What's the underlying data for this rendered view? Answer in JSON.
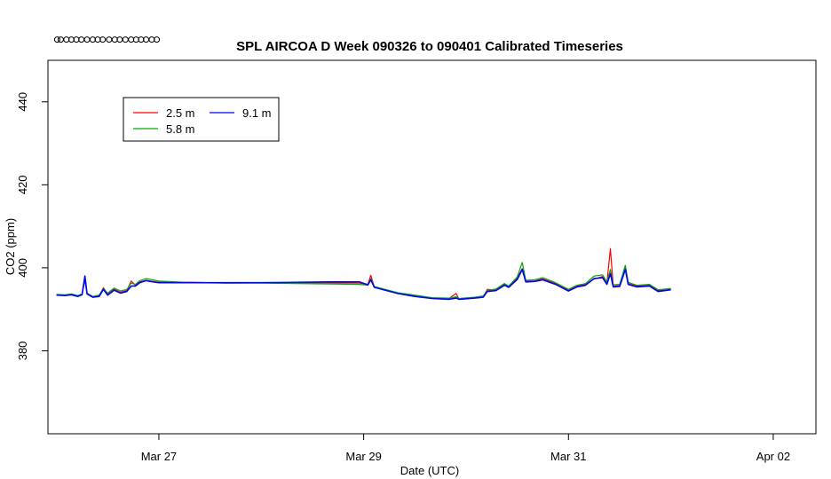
{
  "chart_data": {
    "type": "line",
    "title": "SPL AIRCOA D  Week 090326 to 090401  Calibrated Timeseries",
    "xlabel": "Date (UTC)",
    "ylabel": "CO2 (ppm)",
    "x_ticks": [
      {
        "x": "2009-03-27",
        "label": "Mar 27"
      },
      {
        "x": "2009-03-29",
        "label": "Mar 29"
      },
      {
        "x": "2009-03-31",
        "label": "Mar 31"
      },
      {
        "x": "2009-04-02",
        "label": "Apr 02"
      }
    ],
    "y_ticks": [
      380,
      400,
      420,
      440
    ],
    "ylim": [
      360,
      450
    ],
    "xlim": [
      "2009-03-25T22:00",
      "2009-04-02T10:00"
    ],
    "grid": false,
    "legend_position": "top-left",
    "calibration_markers": {
      "y": 455,
      "x": [
        "2009-03-26T00:10",
        "2009-03-26T01:00",
        "2009-03-26T02:20",
        "2009-03-26T03:30",
        "2009-03-26T04:40",
        "2009-03-26T05:50",
        "2009-03-26T07:10",
        "2009-03-26T08:30",
        "2009-03-26T09:40",
        "2009-03-26T10:50",
        "2009-03-26T12:20",
        "2009-03-26T13:40",
        "2009-03-26T14:50",
        "2009-03-26T16:10",
        "2009-03-26T17:30",
        "2009-03-26T18:40",
        "2009-03-26T19:50",
        "2009-03-26T21:00",
        "2009-03-26T22:20",
        "2009-03-26T23:30"
      ]
    },
    "series": [
      {
        "name": "2.5 m",
        "color": "#ff0000",
        "points": [
          [
            "2009-03-26T00:00",
            393.5
          ],
          [
            "2009-03-26T02:00",
            393.4
          ],
          [
            "2009-03-26T03:30",
            393.6
          ],
          [
            "2009-03-26T05:00",
            393.2
          ],
          [
            "2009-03-26T06:00",
            393.6
          ],
          [
            "2009-03-26T06:40",
            397.8
          ],
          [
            "2009-03-26T07:10",
            393.8
          ],
          [
            "2009-03-26T08:30",
            393.0
          ],
          [
            "2009-03-26T10:00",
            393.2
          ],
          [
            "2009-03-26T11:00",
            395.2
          ],
          [
            "2009-03-26T12:00",
            393.6
          ],
          [
            "2009-03-26T13:30",
            394.8
          ],
          [
            "2009-03-26T15:00",
            394.1
          ],
          [
            "2009-03-26T16:30",
            394.5
          ],
          [
            "2009-03-26T17:30",
            396.8
          ],
          [
            "2009-03-26T18:30",
            395.8
          ],
          [
            "2009-03-26T19:30",
            396.6
          ],
          [
            "2009-03-26T21:00",
            397.0
          ],
          [
            "2009-03-26T22:00",
            396.8
          ],
          [
            "2009-03-27T00:00",
            396.5
          ],
          [
            "2009-03-27T08:00",
            396.5
          ],
          [
            "2009-03-27T16:00",
            396.3
          ],
          [
            "2009-03-28T00:00",
            396.4
          ],
          [
            "2009-03-28T08:00",
            396.4
          ],
          [
            "2009-03-28T16:00",
            396.4
          ],
          [
            "2009-03-28T23:00",
            396.3
          ],
          [
            "2009-03-29T01:00",
            396.0
          ],
          [
            "2009-03-29T01:40",
            398.2
          ],
          [
            "2009-03-29T02:30",
            395.4
          ],
          [
            "2009-03-29T05:00",
            394.7
          ],
          [
            "2009-03-29T08:00",
            393.9
          ],
          [
            "2009-03-29T12:00",
            393.2
          ],
          [
            "2009-03-29T16:00",
            392.7
          ],
          [
            "2009-03-29T20:00",
            392.6
          ],
          [
            "2009-03-29T21:40",
            393.8
          ],
          [
            "2009-03-29T22:20",
            392.5
          ],
          [
            "2009-03-30T02:00",
            392.8
          ],
          [
            "2009-03-30T04:00",
            393.0
          ],
          [
            "2009-03-30T05:00",
            394.8
          ],
          [
            "2009-03-30T07:00",
            394.6
          ],
          [
            "2009-03-30T09:00",
            396.0
          ],
          [
            "2009-03-30T10:00",
            395.4
          ],
          [
            "2009-03-30T12:00",
            397.5
          ],
          [
            "2009-03-30T13:10",
            399.8
          ],
          [
            "2009-03-30T14:00",
            396.8
          ],
          [
            "2009-03-30T16:00",
            396.8
          ],
          [
            "2009-03-30T18:00",
            397.3
          ],
          [
            "2009-03-30T21:00",
            396.2
          ],
          [
            "2009-03-31T00:00",
            394.6
          ],
          [
            "2009-03-31T02:00",
            395.6
          ],
          [
            "2009-03-31T04:00",
            396.0
          ],
          [
            "2009-03-31T06:00",
            397.3
          ],
          [
            "2009-03-31T08:00",
            397.9
          ],
          [
            "2009-03-31T09:00",
            396.3
          ],
          [
            "2009-03-31T09:50",
            404.6
          ],
          [
            "2009-03-31T10:30",
            395.6
          ],
          [
            "2009-03-31T12:00",
            395.7
          ],
          [
            "2009-03-31T13:20",
            400.4
          ],
          [
            "2009-03-31T14:00",
            396.2
          ],
          [
            "2009-03-31T16:00",
            395.6
          ],
          [
            "2009-03-31T19:00",
            395.8
          ],
          [
            "2009-03-31T21:00",
            394.5
          ],
          [
            "2009-04-01T00:00",
            394.8
          ]
        ]
      },
      {
        "name": "5.8 m",
        "color": "#00aa00",
        "points": [
          [
            "2009-03-26T00:00",
            393.6
          ],
          [
            "2009-03-26T02:00",
            393.5
          ],
          [
            "2009-03-26T03:30",
            393.7
          ],
          [
            "2009-03-26T05:00",
            393.3
          ],
          [
            "2009-03-26T06:00",
            393.7
          ],
          [
            "2009-03-26T06:40",
            396.9
          ],
          [
            "2009-03-26T07:10",
            393.9
          ],
          [
            "2009-03-26T08:30",
            393.1
          ],
          [
            "2009-03-26T10:00",
            393.4
          ],
          [
            "2009-03-26T11:00",
            395.0
          ],
          [
            "2009-03-26T12:00",
            393.9
          ],
          [
            "2009-03-26T13:30",
            395.1
          ],
          [
            "2009-03-26T15:00",
            394.4
          ],
          [
            "2009-03-26T16:30",
            394.8
          ],
          [
            "2009-03-26T17:30",
            396.3
          ],
          [
            "2009-03-26T18:30",
            396.0
          ],
          [
            "2009-03-26T19:30",
            396.9
          ],
          [
            "2009-03-26T21:00",
            397.4
          ],
          [
            "2009-03-26T22:00",
            397.2
          ],
          [
            "2009-03-27T00:00",
            396.8
          ],
          [
            "2009-03-27T08:00",
            396.4
          ],
          [
            "2009-03-27T16:00",
            396.3
          ],
          [
            "2009-03-28T00:00",
            396.3
          ],
          [
            "2009-03-28T08:00",
            396.2
          ],
          [
            "2009-03-28T16:00",
            396.1
          ],
          [
            "2009-03-28T23:00",
            396.0
          ],
          [
            "2009-03-29T01:00",
            395.8
          ],
          [
            "2009-03-29T01:40",
            397.4
          ],
          [
            "2009-03-29T02:30",
            395.5
          ],
          [
            "2009-03-29T05:00",
            394.8
          ],
          [
            "2009-03-29T08:00",
            394.0
          ],
          [
            "2009-03-29T12:00",
            393.4
          ],
          [
            "2009-03-29T16:00",
            392.8
          ],
          [
            "2009-03-29T20:00",
            392.7
          ],
          [
            "2009-03-29T21:40",
            393.0
          ],
          [
            "2009-03-29T22:20",
            392.6
          ],
          [
            "2009-03-30T02:00",
            392.9
          ],
          [
            "2009-03-30T04:00",
            393.2
          ],
          [
            "2009-03-30T05:00",
            394.5
          ],
          [
            "2009-03-30T07:00",
            394.9
          ],
          [
            "2009-03-30T09:00",
            396.2
          ],
          [
            "2009-03-30T10:00",
            395.6
          ],
          [
            "2009-03-30T12:00",
            397.8
          ],
          [
            "2009-03-30T13:10",
            401.3
          ],
          [
            "2009-03-30T14:00",
            397.0
          ],
          [
            "2009-03-30T16:00",
            397.1
          ],
          [
            "2009-03-30T18:00",
            397.6
          ],
          [
            "2009-03-30T21:00",
            396.4
          ],
          [
            "2009-03-31T00:00",
            394.8
          ],
          [
            "2009-03-31T02:00",
            395.8
          ],
          [
            "2009-03-31T04:00",
            396.2
          ],
          [
            "2009-03-31T06:00",
            398.0
          ],
          [
            "2009-03-31T08:00",
            398.3
          ],
          [
            "2009-03-31T09:00",
            396.6
          ],
          [
            "2009-03-31T09:50",
            399.6
          ],
          [
            "2009-03-31T10:30",
            395.9
          ],
          [
            "2009-03-31T12:00",
            396.0
          ],
          [
            "2009-03-31T13:20",
            400.6
          ],
          [
            "2009-03-31T14:00",
            396.5
          ],
          [
            "2009-03-31T16:00",
            395.8
          ],
          [
            "2009-03-31T19:00",
            396.0
          ],
          [
            "2009-03-31T21:00",
            394.7
          ],
          [
            "2009-04-01T00:00",
            395.0
          ]
        ]
      },
      {
        "name": "9.1 m",
        "color": "#0000ff",
        "points": [
          [
            "2009-03-26T00:00",
            393.4
          ],
          [
            "2009-03-26T02:00",
            393.3
          ],
          [
            "2009-03-26T03:30",
            393.5
          ],
          [
            "2009-03-26T05:00",
            393.1
          ],
          [
            "2009-03-26T06:00",
            393.5
          ],
          [
            "2009-03-26T06:40",
            398.0
          ],
          [
            "2009-03-26T07:10",
            393.7
          ],
          [
            "2009-03-26T08:30",
            392.9
          ],
          [
            "2009-03-26T10:00",
            393.1
          ],
          [
            "2009-03-26T11:00",
            394.8
          ],
          [
            "2009-03-26T12:00",
            393.4
          ],
          [
            "2009-03-26T13:30",
            394.6
          ],
          [
            "2009-03-26T15:00",
            393.9
          ],
          [
            "2009-03-26T16:30",
            394.3
          ],
          [
            "2009-03-26T17:30",
            395.6
          ],
          [
            "2009-03-26T18:30",
            395.6
          ],
          [
            "2009-03-26T19:30",
            396.4
          ],
          [
            "2009-03-26T21:00",
            396.9
          ],
          [
            "2009-03-26T22:00",
            396.7
          ],
          [
            "2009-03-27T00:00",
            396.4
          ],
          [
            "2009-03-27T08:00",
            396.4
          ],
          [
            "2009-03-27T16:00",
            396.4
          ],
          [
            "2009-03-28T00:00",
            396.4
          ],
          [
            "2009-03-28T08:00",
            396.5
          ],
          [
            "2009-03-28T16:00",
            396.6
          ],
          [
            "2009-03-28T23:00",
            396.6
          ],
          [
            "2009-03-29T01:00",
            395.9
          ],
          [
            "2009-03-29T01:40",
            397.1
          ],
          [
            "2009-03-29T02:30",
            395.3
          ],
          [
            "2009-03-29T05:00",
            394.6
          ],
          [
            "2009-03-29T08:00",
            393.8
          ],
          [
            "2009-03-29T12:00",
            393.1
          ],
          [
            "2009-03-29T16:00",
            392.6
          ],
          [
            "2009-03-29T20:00",
            392.4
          ],
          [
            "2009-03-29T21:40",
            392.7
          ],
          [
            "2009-03-29T22:20",
            392.4
          ],
          [
            "2009-03-30T02:00",
            392.7
          ],
          [
            "2009-03-30T04:00",
            392.9
          ],
          [
            "2009-03-30T05:00",
            394.3
          ],
          [
            "2009-03-30T07:00",
            394.5
          ],
          [
            "2009-03-30T09:00",
            395.8
          ],
          [
            "2009-03-30T10:00",
            395.3
          ],
          [
            "2009-03-30T12:00",
            397.2
          ],
          [
            "2009-03-30T13:10",
            399.6
          ],
          [
            "2009-03-30T14:00",
            396.6
          ],
          [
            "2009-03-30T16:00",
            396.7
          ],
          [
            "2009-03-30T18:00",
            397.1
          ],
          [
            "2009-03-30T21:00",
            396.0
          ],
          [
            "2009-03-31T00:00",
            394.4
          ],
          [
            "2009-03-31T02:00",
            395.4
          ],
          [
            "2009-03-31T04:00",
            395.8
          ],
          [
            "2009-03-31T06:00",
            397.4
          ],
          [
            "2009-03-31T08:00",
            397.6
          ],
          [
            "2009-03-31T09:00",
            396.0
          ],
          [
            "2009-03-31T09:50",
            398.6
          ],
          [
            "2009-03-31T10:30",
            395.4
          ],
          [
            "2009-03-31T12:00",
            395.5
          ],
          [
            "2009-03-31T13:20",
            399.6
          ],
          [
            "2009-03-31T14:00",
            396.0
          ],
          [
            "2009-03-31T16:00",
            395.4
          ],
          [
            "2009-03-31T19:00",
            395.6
          ],
          [
            "2009-03-31T21:00",
            394.3
          ],
          [
            "2009-04-01T00:00",
            394.7
          ]
        ]
      }
    ]
  }
}
